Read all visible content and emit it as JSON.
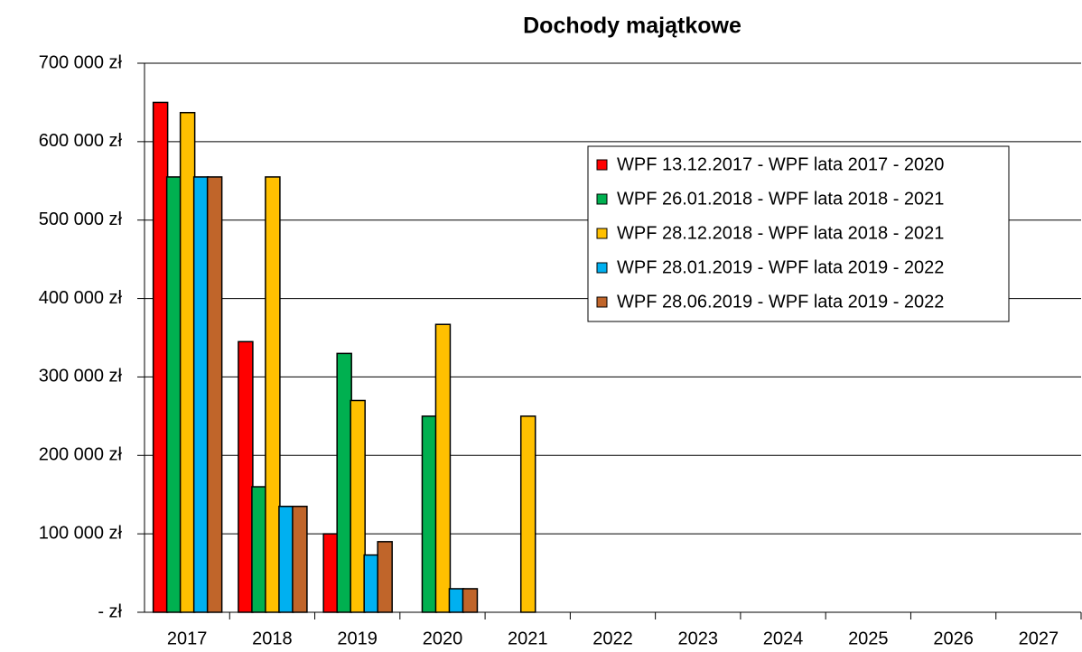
{
  "chart_data": {
    "type": "bar",
    "title": "Dochody majątkowe",
    "categories": [
      "2017",
      "2018",
      "2019",
      "2020",
      "2021",
      "2022",
      "2023",
      "2024",
      "2025",
      "2026",
      "2027"
    ],
    "series": [
      {
        "name": "WPF 13.12.2017 - WPF lata 2017 - 2020",
        "color": "#ff0000",
        "values": [
          650000,
          345000,
          100000,
          null,
          null,
          null,
          null,
          null,
          null,
          null,
          null
        ]
      },
      {
        "name": "WPF 26.01.2018 - WPF lata 2018 - 2021",
        "color": "#00b050",
        "values": [
          555000,
          160000,
          330000,
          250000,
          null,
          null,
          null,
          null,
          null,
          null,
          null
        ]
      },
      {
        "name": "WPF 28.12.2018 - WPF lata 2018 - 2021",
        "color": "#ffc000",
        "values": [
          637000,
          555000,
          270000,
          367000,
          250000,
          null,
          null,
          null,
          null,
          null,
          null
        ]
      },
      {
        "name": "WPF 28.01.2019 - WPF lata 2019 - 2022",
        "color": "#00b0f0",
        "values": [
          555000,
          135000,
          73000,
          30000,
          null,
          null,
          null,
          null,
          null,
          null,
          null
        ]
      },
      {
        "name": "WPF 28.06.2019 - WPF lata 2019 - 2022",
        "color": "#c0652a",
        "values": [
          555000,
          135000,
          90000,
          30000,
          null,
          null,
          null,
          null,
          null,
          null,
          null
        ]
      }
    ],
    "ylim": [
      0,
      700000
    ],
    "yticks": [
      {
        "value": 0,
        "label": "- zł"
      },
      {
        "value": 100000,
        "label": "100 000 zł"
      },
      {
        "value": 200000,
        "label": "200 000 zł"
      },
      {
        "value": 300000,
        "label": "300 000 zł"
      },
      {
        "value": 400000,
        "label": "400 000 zł"
      },
      {
        "value": 500000,
        "label": "500 000 zł"
      },
      {
        "value": 600000,
        "label": "600 000 zł"
      },
      {
        "value": 700000,
        "label": "700 000 zł"
      }
    ],
    "grid": true,
    "legend": "upper right"
  }
}
